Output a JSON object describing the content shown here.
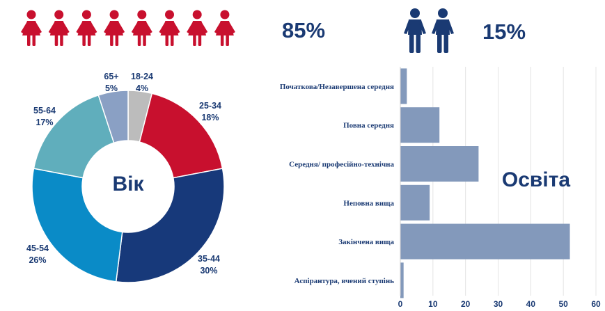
{
  "gender": {
    "female": {
      "percent_label": "85%",
      "icon_count": 8,
      "color": "#c8102e",
      "icon": "female-person-icon"
    },
    "male": {
      "percent_label": "15%",
      "icon_count": 2,
      "color": "#1a3a73",
      "icon": "male-person-icon"
    },
    "label_color": "#1a3a73"
  },
  "chart_data": [
    {
      "type": "pie",
      "center_label": "Вік",
      "slices": [
        {
          "name": "18-24",
          "value": 4,
          "label": "4%",
          "color": "#bcbcbc"
        },
        {
          "name": "25-34",
          "value": 18,
          "label": "18%",
          "color": "#c8102e"
        },
        {
          "name": "35-44",
          "value": 30,
          "label": "30%",
          "color": "#17397a"
        },
        {
          "name": "45-54",
          "value": 26,
          "label": "26%",
          "color": "#0a8bc7"
        },
        {
          "name": "55-64",
          "value": 17,
          "label": "17%",
          "color": "#60aebc"
        },
        {
          "name": "65+",
          "value": 5,
          "label": "5%",
          "color": "#8aa0c4"
        }
      ]
    },
    {
      "type": "bar",
      "orientation": "horizontal",
      "title": "Освіта",
      "bar_color": "#8399bb",
      "categories": [
        "Початкова/Незавершена середня",
        "Повна середня",
        "Середня/ професійно-технічна",
        "Неповна вища",
        "Закінчена вища",
        "Аспірантура, вчений ступінь"
      ],
      "values": [
        2,
        12,
        24,
        9,
        52,
        1
      ],
      "xlim": [
        0,
        60
      ],
      "xticks": [
        "0",
        "10",
        "20",
        "30",
        "40",
        "50",
        "60"
      ]
    }
  ]
}
